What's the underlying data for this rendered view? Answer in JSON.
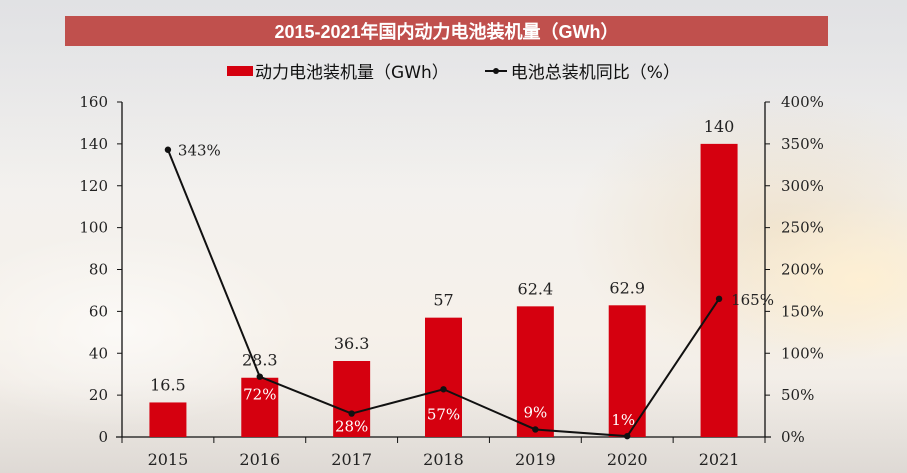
{
  "chart_data": {
    "type": "bar",
    "title": "2015-2021年国内动力电池装机量（GWh）",
    "categories": [
      "2015",
      "2016",
      "2017",
      "2018",
      "2019",
      "2020",
      "2021"
    ],
    "series": [
      {
        "name": "动力电池装机量（GWh）",
        "type": "bar",
        "axis": "left",
        "values": [
          16.5,
          28.3,
          36.3,
          57,
          62.4,
          62.9,
          140
        ],
        "labels": [
          "16.5",
          "28.3",
          "36.3",
          "57",
          "62.4",
          "62.9",
          "140"
        ],
        "color": "#d5000f"
      },
      {
        "name": "电池总装机同比（%）",
        "type": "line",
        "axis": "right",
        "values": [
          343,
          72,
          28,
          57,
          9,
          1,
          165
        ],
        "labels": [
          "343%",
          "72%",
          "28%",
          "57%",
          "9%",
          "1%",
          "165%"
        ],
        "color": "#111111"
      }
    ],
    "y_left": {
      "range": [
        0,
        160
      ],
      "ticks": [
        "0",
        "20",
        "40",
        "60",
        "80",
        "100",
        "120",
        "140",
        "160"
      ]
    },
    "y_right": {
      "range": [
        0,
        400
      ],
      "ticks": [
        "0%",
        "50%",
        "100%",
        "150%",
        "200%",
        "250%",
        "300%",
        "350%",
        "400%"
      ]
    },
    "xlabel": "",
    "ylabel": "",
    "grid": false,
    "legend": "top-center"
  }
}
